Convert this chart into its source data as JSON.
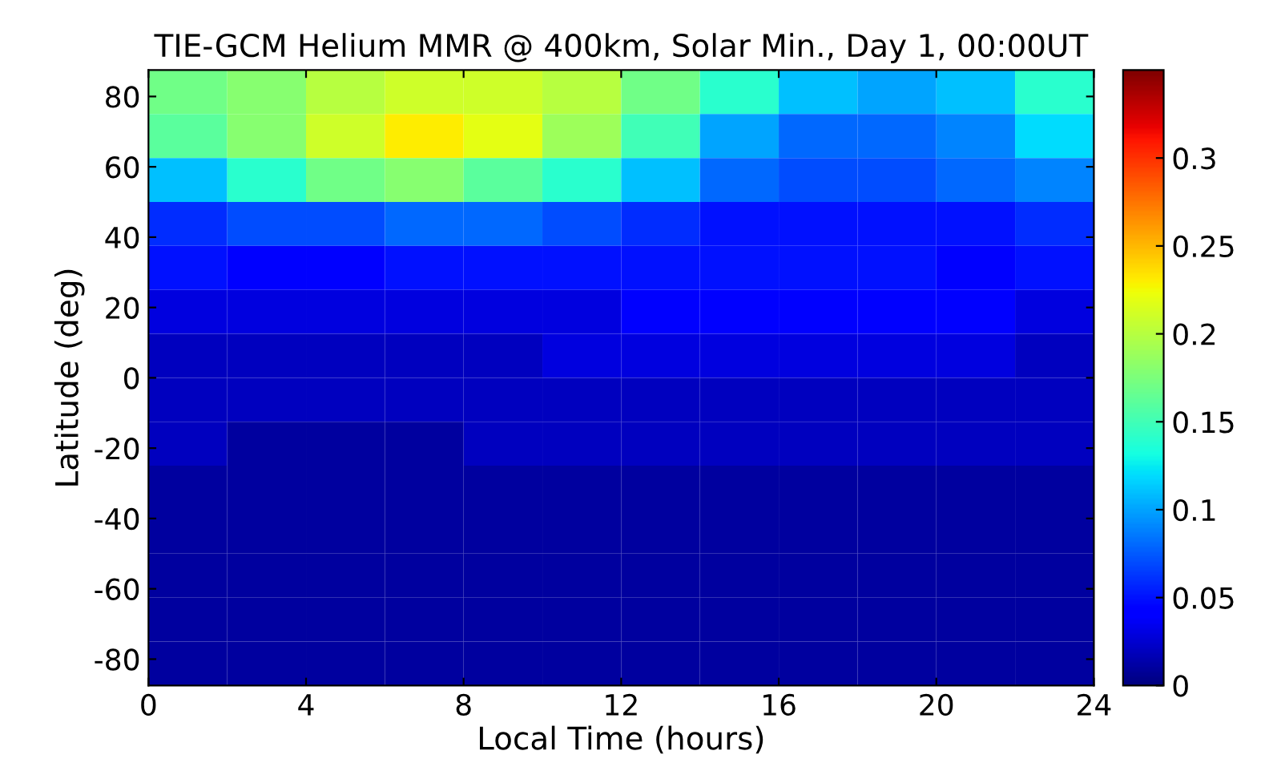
{
  "chart_data": {
    "type": "heatmap",
    "title": "TIE-GCM Helium MMR @ 400km, Solar Min., Day 1, 00:00UT",
    "xlabel": "Local Time (hours)",
    "ylabel": "Latitude (deg)",
    "x": [
      1,
      3,
      5,
      7,
      9,
      11,
      13,
      15,
      17,
      19,
      21,
      23
    ],
    "y": [
      81.25,
      68.75,
      56.25,
      43.75,
      31.25,
      18.75,
      6.25,
      -6.25,
      -18.75,
      -31.25,
      -43.75,
      -56.25,
      -68.75,
      -81.25
    ],
    "cells": [
      [
        0.17,
        0.18,
        0.2,
        0.21,
        0.21,
        0.2,
        0.17,
        0.14,
        0.11,
        0.1,
        0.11,
        0.14
      ],
      [
        0.16,
        0.18,
        0.21,
        0.23,
        0.22,
        0.19,
        0.15,
        0.1,
        0.08,
        0.08,
        0.09,
        0.12
      ],
      [
        0.11,
        0.14,
        0.17,
        0.18,
        0.16,
        0.14,
        0.11,
        0.08,
        0.07,
        0.07,
        0.08,
        0.09
      ],
      [
        0.06,
        0.07,
        0.07,
        0.08,
        0.08,
        0.07,
        0.06,
        0.05,
        0.05,
        0.05,
        0.05,
        0.06
      ],
      [
        0.05,
        0.04,
        0.04,
        0.05,
        0.05,
        0.05,
        0.05,
        0.05,
        0.05,
        0.05,
        0.04,
        0.05
      ],
      [
        0.03,
        0.03,
        0.03,
        0.03,
        0.03,
        0.03,
        0.04,
        0.04,
        0.04,
        0.04,
        0.04,
        0.03
      ],
      [
        0.02,
        0.02,
        0.02,
        0.02,
        0.02,
        0.03,
        0.03,
        0.03,
        0.03,
        0.03,
        0.03,
        0.02
      ],
      [
        0.02,
        0.02,
        0.02,
        0.02,
        0.02,
        0.02,
        0.02,
        0.02,
        0.02,
        0.02,
        0.02,
        0.02
      ],
      [
        0.02,
        0.01,
        0.01,
        0.01,
        0.02,
        0.02,
        0.02,
        0.02,
        0.02,
        0.02,
        0.02,
        0.02
      ],
      [
        0.01,
        0.01,
        0.01,
        0.01,
        0.01,
        0.01,
        0.01,
        0.01,
        0.01,
        0.01,
        0.01,
        0.01
      ],
      [
        0.01,
        0.01,
        0.01,
        0.01,
        0.01,
        0.01,
        0.01,
        0.01,
        0.01,
        0.01,
        0.01,
        0.01
      ],
      [
        0.01,
        0.01,
        0.01,
        0.01,
        0.01,
        0.01,
        0.01,
        0.01,
        0.01,
        0.01,
        0.01,
        0.01
      ],
      [
        0.01,
        0.01,
        0.01,
        0.01,
        0.01,
        0.01,
        0.01,
        0.01,
        0.01,
        0.01,
        0.01,
        0.01
      ],
      [
        0.01,
        0.01,
        0.01,
        0.01,
        0.01,
        0.01,
        0.01,
        0.01,
        0.01,
        0.01,
        0.01,
        0.01
      ]
    ],
    "xlim": [
      0,
      24
    ],
    "xticks": [
      0,
      4,
      8,
      12,
      16,
      20,
      24
    ],
    "ylim": [
      -87.5,
      87.5
    ],
    "yticks": [
      -80,
      -60,
      -40,
      -20,
      0,
      20,
      40,
      60,
      80
    ],
    "clim": [
      0,
      0.35
    ],
    "cticks": [
      0,
      0.05,
      0.1,
      0.15,
      0.2,
      0.25,
      0.3
    ]
  }
}
